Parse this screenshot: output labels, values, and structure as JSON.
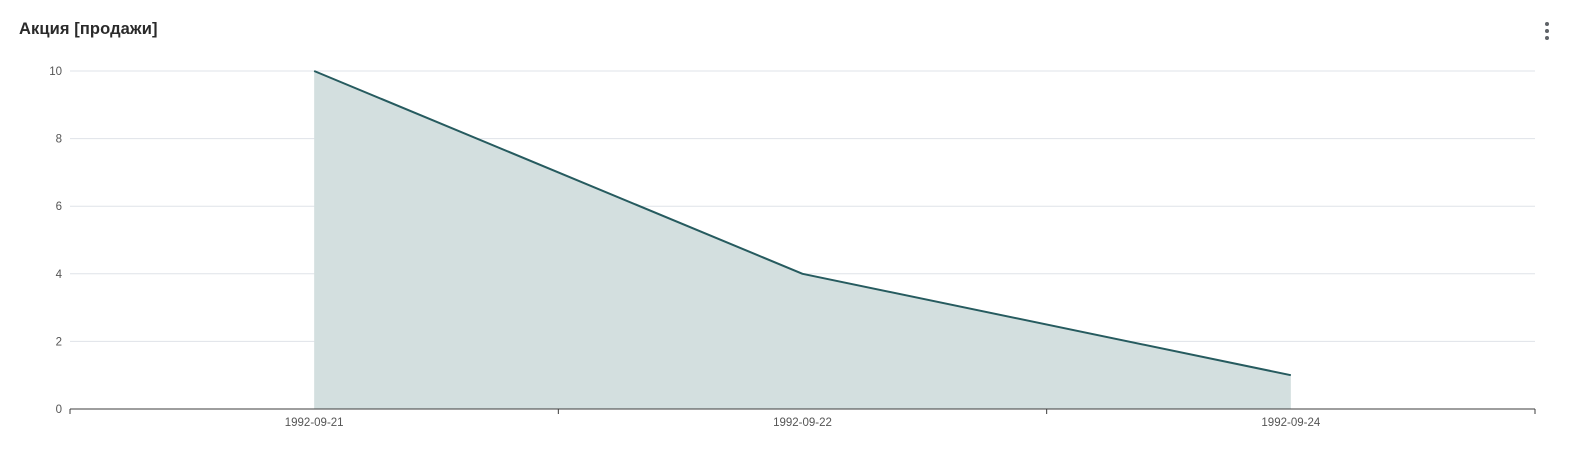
{
  "header": {
    "title": "Акция [продажи]",
    "menu_icon": "more-vert-icon"
  },
  "colors": {
    "line": "#265b5f",
    "area": "#d3dfdf",
    "grid": "#dfe3e8",
    "axis": "#3c3c3c"
  },
  "chart_data": {
    "type": "area",
    "title": "Акция [продажи]",
    "xlabel": "",
    "ylabel": "",
    "x": [
      "1992-09-21",
      "1992-09-22",
      "1992-09-24"
    ],
    "x_tick_labels": [
      "1992-09-21",
      "1992-09-22",
      "1992-09-24"
    ],
    "series": [
      {
        "values": [
          10,
          4,
          1
        ]
      }
    ],
    "ylim": [
      0,
      10
    ],
    "y_ticks": [
      0,
      2,
      4,
      6,
      8,
      10
    ],
    "grid": true,
    "legend": "none"
  }
}
